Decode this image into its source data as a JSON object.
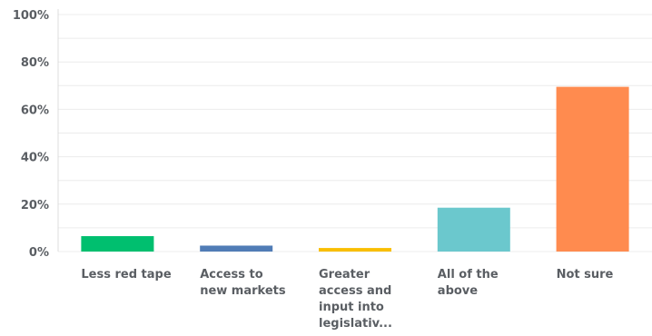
{
  "chart_data": {
    "type": "bar",
    "categories": [
      "Less red tape",
      "Access to new markets",
      "Greater access and input into legislativ...",
      "All of the above",
      "Not sure"
    ],
    "category_lines": [
      [
        "Less red tape"
      ],
      [
        "Access to",
        "new markets"
      ],
      [
        "Greater",
        "access and",
        "input into",
        "legislativ..."
      ],
      [
        "All of the",
        "above"
      ],
      [
        "Not sure"
      ]
    ],
    "values": [
      6.5,
      2.5,
      1.5,
      18.5,
      69.5
    ],
    "colors": [
      "#00bf6f",
      "#507cb6",
      "#f9be00",
      "#6bc8cd",
      "#ff8b4f"
    ],
    "ylim": [
      0,
      100
    ],
    "yticks": [
      0,
      20,
      40,
      60,
      80,
      100
    ],
    "ytick_labels": [
      "0%",
      "20%",
      "40%",
      "60%",
      "80%",
      "100%"
    ],
    "grid": true,
    "title": "",
    "xlabel": "",
    "ylabel": ""
  }
}
